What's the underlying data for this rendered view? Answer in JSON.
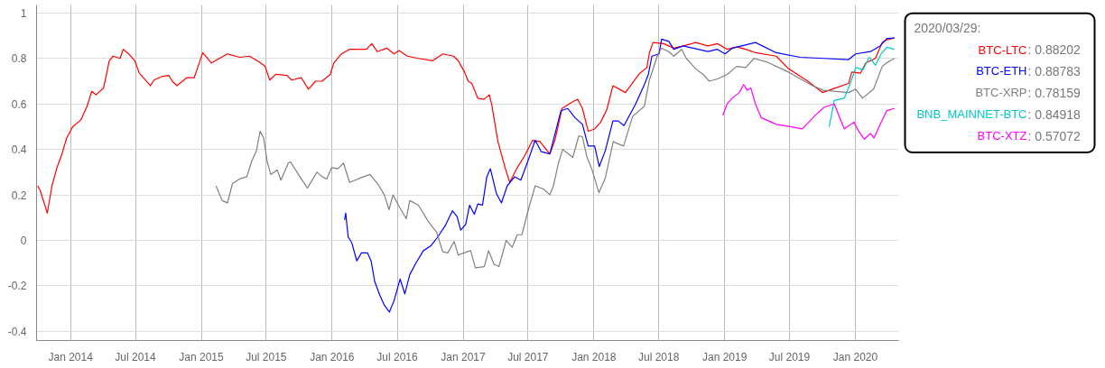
{
  "chart_data": {
    "type": "line",
    "xlim": [
      "2013-09-28",
      "2020-05-01"
    ],
    "ylim": [
      -0.44,
      1.035
    ],
    "yticks": [
      -0.4,
      -0.2,
      0,
      0.2,
      0.4,
      0.6,
      0.8,
      1
    ],
    "xticks": [
      {
        "value": "2014-01-01",
        "label": "Jan 2014"
      },
      {
        "value": "2014-07-01",
        "label": "Jul 2014"
      },
      {
        "value": "2015-01-01",
        "label": "Jan 2015"
      },
      {
        "value": "2015-07-01",
        "label": "Jul 2015"
      },
      {
        "value": "2016-01-01",
        "label": "Jan 2016"
      },
      {
        "value": "2016-07-01",
        "label": "Jul 2016"
      },
      {
        "value": "2017-01-01",
        "label": "Jan 2017"
      },
      {
        "value": "2017-07-01",
        "label": "Jul 2017"
      },
      {
        "value": "2018-01-01",
        "label": "Jan 2018"
      },
      {
        "value": "2018-07-01",
        "label": "Jul 2018"
      },
      {
        "value": "2019-01-01",
        "label": "Jan 2019"
      },
      {
        "value": "2019-07-01",
        "label": "Jul 2019"
      },
      {
        "value": "2020-01-01",
        "label": "Jan 2020"
      }
    ],
    "grid": true,
    "line_style": "solid",
    "annotations": [
      "2020/03/29:",
      ": 0.88202",
      ": 0.88783",
      ": 0.78159",
      ": 0.84918",
      ": 0.57072"
    ],
    "series": [
      {
        "name": "BTC-LTC",
        "color": "#ff0000",
        "x": [
          "2013-10-01",
          "2013-10-08",
          "2013-10-18",
          "2013-10-28",
          "2013-11-10",
          "2013-11-24",
          "2013-12-08",
          "2013-12-21",
          "2014-01-07",
          "2014-01-30",
          "2014-02-16",
          "2014-03-01",
          "2014-03-13",
          "2014-04-03",
          "2014-04-19",
          "2014-04-30",
          "2014-05-19",
          "2014-05-28",
          "2014-06-12",
          "2014-06-29",
          "2014-07-12",
          "2014-08-12",
          "2014-08-22",
          "2014-09-12",
          "2014-10-02",
          "2014-10-12",
          "2014-10-25",
          "2014-11-21",
          "2014-12-12",
          "2014-12-25",
          "2015-01-05",
          "2015-01-29",
          "2015-03-15",
          "2015-04-18",
          "2015-05-15",
          "2015-06-11",
          "2015-06-28",
          "2015-07-11",
          "2015-07-28",
          "2015-08-28",
          "2015-09-10",
          "2015-10-07",
          "2015-10-27",
          "2015-11-16",
          "2015-12-04",
          "2015-12-27",
          "2016-01-06",
          "2016-01-27",
          "2016-02-19",
          "2016-04-06",
          "2016-04-21",
          "2016-05-06",
          "2016-06-02",
          "2016-06-22",
          "2016-07-06",
          "2016-07-29",
          "2016-08-29",
          "2016-10-08",
          "2016-11-05",
          "2016-12-05",
          "2016-12-18",
          "2017-01-05",
          "2017-01-15",
          "2017-01-25",
          "2017-02-11",
          "2017-02-28",
          "2017-03-15",
          "2017-03-22",
          "2017-04-08",
          "2017-04-28",
          "2017-05-11",
          "2017-06-01",
          "2017-06-21",
          "2017-07-14",
          "2017-08-03",
          "2017-08-31",
          "2017-09-14",
          "2017-10-04",
          "2017-11-03",
          "2017-11-17",
          "2017-11-30",
          "2017-12-16",
          "2018-01-03",
          "2018-01-20",
          "2018-02-06",
          "2018-02-23",
          "2018-03-30",
          "2018-05-09",
          "2018-05-29",
          "2018-06-05",
          "2018-06-15",
          "2018-07-15",
          "2018-08-12",
          "2018-09-08",
          "2018-10-12",
          "2018-11-15",
          "2018-12-12",
          "2019-01-08",
          "2019-02-04",
          "2019-03-01",
          "2019-03-28",
          "2019-05-25",
          "2019-06-28",
          "2019-08-21",
          "2019-10-01",
          "2019-10-28",
          "2019-12-13",
          "2019-12-22",
          "2020-01-15",
          "2020-01-30",
          "2020-02-26",
          "2020-03-16",
          "2020-03-29",
          "2020-04-19"
        ],
        "values": [
          0.24,
          0.22,
          0.17,
          0.12,
          0.24,
          0.32,
          0.38,
          0.45,
          0.5,
          0.53,
          0.59,
          0.655,
          0.64,
          0.67,
          0.79,
          0.81,
          0.8,
          0.84,
          0.82,
          0.79,
          0.735,
          0.68,
          0.705,
          0.72,
          0.725,
          0.7,
          0.68,
          0.715,
          0.715,
          0.775,
          0.825,
          0.78,
          0.82,
          0.805,
          0.81,
          0.785,
          0.765,
          0.705,
          0.73,
          0.725,
          0.705,
          0.715,
          0.665,
          0.7,
          0.7,
          0.73,
          0.78,
          0.82,
          0.84,
          0.84,
          0.865,
          0.83,
          0.845,
          0.82,
          0.835,
          0.81,
          0.8,
          0.79,
          0.82,
          0.81,
          0.79,
          0.74,
          0.7,
          0.69,
          0.625,
          0.62,
          0.64,
          0.595,
          0.435,
          0.32,
          0.255,
          0.32,
          0.37,
          0.44,
          0.435,
          0.38,
          0.44,
          0.58,
          0.61,
          0.62,
          0.58,
          0.48,
          0.49,
          0.52,
          0.575,
          0.68,
          0.65,
          0.735,
          0.76,
          0.825,
          0.87,
          0.865,
          0.845,
          0.855,
          0.87,
          0.855,
          0.865,
          0.84,
          0.85,
          0.84,
          0.825,
          0.81,
          0.755,
          0.7,
          0.65,
          0.665,
          0.69,
          0.74,
          0.735,
          0.78,
          0.8,
          0.87,
          0.88202,
          0.89
        ]
      },
      {
        "name": "BTC-ETH",
        "color": "#0000ff",
        "x": [
          "2016-02-05",
          "2016-02-08",
          "2016-02-15",
          "2016-02-25",
          "2016-03-10",
          "2016-03-23",
          "2016-04-09",
          "2016-04-19",
          "2016-04-29",
          "2016-05-13",
          "2016-05-26",
          "2016-06-09",
          "2016-06-22",
          "2016-07-09",
          "2016-07-22",
          "2016-08-05",
          "2016-08-22",
          "2016-09-12",
          "2016-10-02",
          "2016-10-22",
          "2016-11-12",
          "2016-12-02",
          "2016-12-15",
          "2016-12-25",
          "2017-01-08",
          "2017-01-19",
          "2017-02-01",
          "2017-02-11",
          "2017-02-24",
          "2017-03-08",
          "2017-03-18",
          "2017-04-04",
          "2017-04-18",
          "2017-05-04",
          "2017-05-25",
          "2017-06-11",
          "2017-07-01",
          "2017-07-21",
          "2017-08-07",
          "2017-08-31",
          "2017-10-01",
          "2017-10-20",
          "2017-11-09",
          "2017-11-30",
          "2017-12-16",
          "2018-01-03",
          "2018-01-16",
          "2018-02-02",
          "2018-02-23",
          "2018-03-10",
          "2018-03-26",
          "2018-04-26",
          "2018-05-22",
          "2018-06-02",
          "2018-06-12",
          "2018-07-02",
          "2018-07-09",
          "2018-07-29",
          "2018-08-12",
          "2018-09-08",
          "2018-10-05",
          "2018-11-15",
          "2018-12-12",
          "2019-01-02",
          "2019-01-22",
          "2019-02-18",
          "2019-03-28",
          "2019-05-25",
          "2019-07-31",
          "2019-10-05",
          "2019-12-13",
          "2020-01-02",
          "2020-02-12",
          "2020-03-10",
          "2020-03-29",
          "2020-04-19"
        ],
        "values": [
          0.09,
          0.12,
          0.015,
          -0.01,
          -0.09,
          -0.055,
          -0.055,
          -0.09,
          -0.18,
          -0.24,
          -0.285,
          -0.315,
          -0.265,
          -0.17,
          -0.235,
          -0.15,
          -0.1,
          -0.045,
          -0.025,
          0.015,
          0.065,
          0.13,
          0.105,
          0.045,
          0.07,
          0.155,
          0.115,
          0.16,
          0.155,
          0.28,
          0.315,
          0.205,
          0.165,
          0.24,
          0.28,
          0.265,
          0.35,
          0.44,
          0.39,
          0.38,
          0.57,
          0.58,
          0.54,
          0.51,
          0.415,
          0.415,
          0.325,
          0.395,
          0.525,
          0.525,
          0.505,
          0.595,
          0.685,
          0.73,
          0.81,
          0.82,
          0.885,
          0.875,
          0.84,
          0.855,
          0.845,
          0.83,
          0.84,
          0.82,
          0.845,
          0.855,
          0.87,
          0.825,
          0.805,
          0.8,
          0.795,
          0.82,
          0.83,
          0.855,
          0.88783,
          0.89
        ]
      },
      {
        "name": "BTC-XRP",
        "color": "#808080",
        "x": [
          "2015-02-11",
          "2015-02-28",
          "2015-03-15",
          "2015-03-29",
          "2015-04-18",
          "2015-05-08",
          "2015-05-21",
          "2015-06-04",
          "2015-06-14",
          "2015-06-24",
          "2015-07-04",
          "2015-07-14",
          "2015-08-01",
          "2015-08-11",
          "2015-09-01",
          "2015-09-07",
          "2015-09-27",
          "2015-10-24",
          "2015-11-20",
          "2015-12-04",
          "2015-12-17",
          "2015-12-31",
          "2016-01-17",
          "2016-02-02",
          "2016-02-19",
          "2016-03-13",
          "2016-04-16",
          "2016-05-09",
          "2016-05-26",
          "2016-06-08",
          "2016-06-19",
          "2016-07-06",
          "2016-07-26",
          "2016-08-05",
          "2016-08-29",
          "2016-09-25",
          "2016-10-19",
          "2016-11-05",
          "2016-11-19",
          "2016-12-07",
          "2016-12-18",
          "2017-01-12",
          "2017-01-22",
          "2017-02-04",
          "2017-03-01",
          "2017-03-13",
          "2017-03-28",
          "2017-04-11",
          "2017-05-01",
          "2017-05-18",
          "2017-06-01",
          "2017-06-14",
          "2017-07-01",
          "2017-07-21",
          "2017-08-14",
          "2017-08-31",
          "2017-09-10",
          "2017-09-24",
          "2017-10-06",
          "2017-11-03",
          "2017-11-20",
          "2017-11-30",
          "2017-12-12",
          "2017-12-27",
          "2018-01-15",
          "2018-02-02",
          "2018-02-24",
          "2018-03-01",
          "2018-03-25",
          "2018-04-19",
          "2018-05-22",
          "2018-06-05",
          "2018-06-29",
          "2018-07-09",
          "2018-07-29",
          "2018-08-12",
          "2018-09-03",
          "2018-09-16",
          "2018-10-12",
          "2018-11-02",
          "2018-11-19",
          "2018-12-12",
          "2019-01-08",
          "2019-02-04",
          "2019-03-01",
          "2019-03-24",
          "2019-04-28",
          "2019-06-28",
          "2019-09-03",
          "2019-10-05",
          "2019-12-13",
          "2020-01-02",
          "2020-01-21",
          "2020-02-21",
          "2020-03-16",
          "2020-03-29",
          "2020-04-19"
        ],
        "values": [
          0.24,
          0.175,
          0.165,
          0.25,
          0.27,
          0.28,
          0.345,
          0.395,
          0.48,
          0.45,
          0.345,
          0.29,
          0.31,
          0.265,
          0.34,
          0.345,
          0.295,
          0.23,
          0.3,
          0.28,
          0.27,
          0.32,
          0.315,
          0.34,
          0.255,
          0.27,
          0.29,
          0.245,
          0.2,
          0.135,
          0.2,
          0.15,
          0.095,
          0.175,
          0.155,
          0.085,
          0.035,
          -0.05,
          -0.055,
          -0.005,
          -0.065,
          -0.05,
          -0.045,
          -0.12,
          -0.115,
          -0.045,
          -0.105,
          -0.115,
          0.0,
          -0.03,
          0.025,
          0.025,
          0.13,
          0.24,
          0.225,
          0.2,
          0.24,
          0.34,
          0.4,
          0.365,
          0.46,
          0.455,
          0.37,
          0.31,
          0.21,
          0.275,
          0.435,
          0.43,
          0.415,
          0.545,
          0.59,
          0.705,
          0.82,
          0.845,
          0.83,
          0.81,
          0.84,
          0.8,
          0.755,
          0.73,
          0.7,
          0.71,
          0.73,
          0.765,
          0.76,
          0.8,
          0.785,
          0.74,
          0.68,
          0.66,
          0.65,
          0.665,
          0.625,
          0.665,
          0.765,
          0.78159,
          0.8
        ]
      },
      {
        "name": "BNB_MAINNET-BTC",
        "color": "#00c8c8",
        "x": [
          "2019-10-20",
          "2019-11-03",
          "2019-12-01",
          "2019-12-20",
          "2020-01-02",
          "2020-01-22",
          "2020-02-09",
          "2020-02-26",
          "2020-03-13",
          "2020-03-29",
          "2020-04-19"
        ],
        "values": [
          0.5,
          0.615,
          0.625,
          0.7,
          0.76,
          0.75,
          0.805,
          0.77,
          0.82,
          0.84918,
          0.84
        ]
      },
      {
        "name": "BTC-XTZ",
        "color": "#ff00ff",
        "x": [
          "2018-12-27",
          "2019-01-08",
          "2019-01-22",
          "2019-02-11",
          "2019-02-23",
          "2019-03-05",
          "2019-03-15",
          "2019-03-28",
          "2019-04-13",
          "2019-05-25",
          "2019-07-04",
          "2019-08-06",
          "2019-09-11",
          "2019-10-05",
          "2019-11-03",
          "2019-12-01",
          "2019-12-28",
          "2020-01-10",
          "2020-01-26",
          "2020-02-12",
          "2020-02-22",
          "2020-03-10",
          "2020-03-29",
          "2020-04-19"
        ],
        "values": [
          0.55,
          0.6,
          0.625,
          0.65,
          0.685,
          0.66,
          0.67,
          0.6,
          0.54,
          0.51,
          0.5,
          0.49,
          0.55,
          0.585,
          0.6,
          0.49,
          0.52,
          0.48,
          0.445,
          0.47,
          0.45,
          0.51,
          0.57072,
          0.58
        ]
      }
    ]
  }
}
